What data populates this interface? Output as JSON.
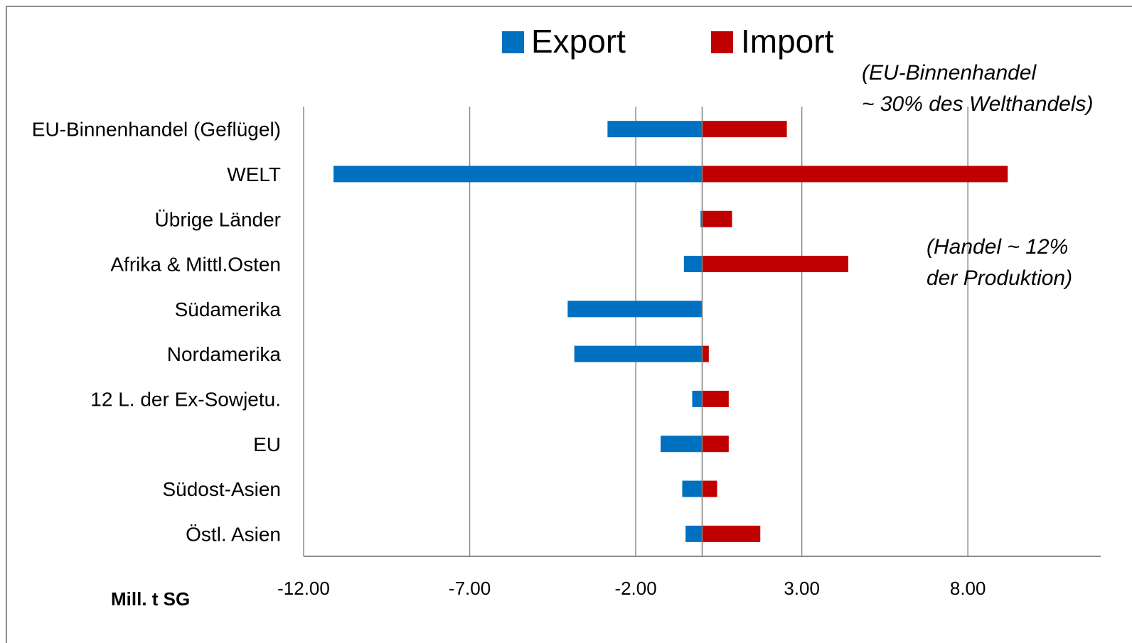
{
  "chart_data": {
    "type": "bar",
    "orientation": "horizontal",
    "categories": [
      "EU-Binnenhandel (Geflügel)",
      "WELT",
      "Übrige Länder",
      "Afrika & Mittl.Osten",
      "Südamerika",
      "Nordamerika",
      "12 L. der Ex-Sowjetu.",
      "EU",
      "Südost-Asien",
      "Östl. Asien"
    ],
    "series": [
      {
        "name": "Export",
        "color": "#0070c0",
        "values": [
          -2.85,
          -11.1,
          -0.05,
          -0.55,
          -4.05,
          -3.85,
          -0.3,
          -1.25,
          -0.6,
          -0.5
        ]
      },
      {
        "name": "Import",
        "color": "#c00000",
        "values": [
          2.55,
          9.2,
          0.9,
          4.4,
          0.0,
          0.2,
          0.8,
          0.8,
          0.45,
          1.75
        ]
      }
    ],
    "xlim": [
      -12,
      12
    ],
    "ticks": [
      "-12.00",
      "-7.00",
      "-2.00",
      "3.00",
      "8.00"
    ],
    "tick_values": [
      -12,
      -7,
      -2,
      3,
      8
    ],
    "grid": true,
    "legend_position": "top",
    "xlabel": "Mill. t SG",
    "annotations": [
      "(EU-Binnenhandel",
      "~ 30% des Welthandels)",
      "(Handel ~ 12%",
      "der Produktion)"
    ]
  }
}
